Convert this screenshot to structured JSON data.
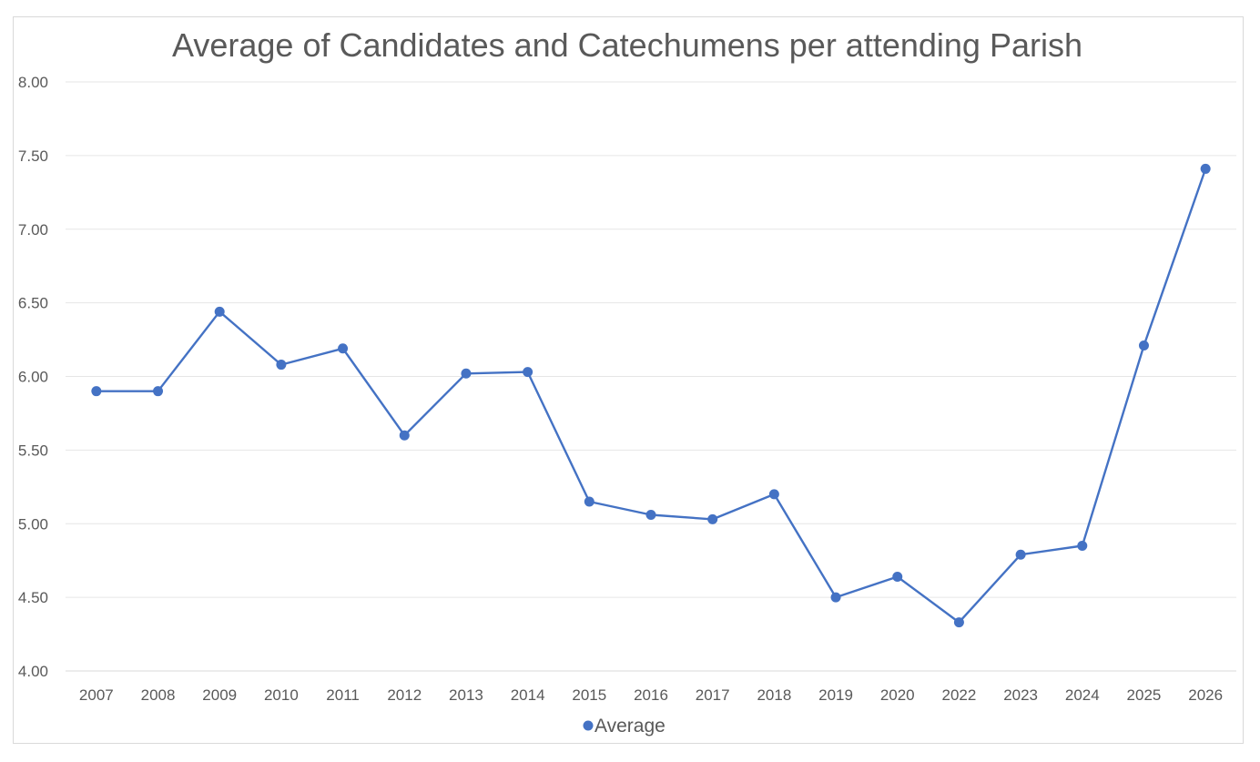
{
  "chart_data": {
    "type": "line",
    "title": "Average of Candidates and Catechumens per attending Parish",
    "xlabel": "",
    "ylabel": "",
    "categories": [
      "2007",
      "2008",
      "2009",
      "2010",
      "2011",
      "2012",
      "2013",
      "2014",
      "2015",
      "2016",
      "2017",
      "2018",
      "2019",
      "2020",
      "2022",
      "2023",
      "2024",
      "2025",
      "2026"
    ],
    "series": [
      {
        "name": "Average",
        "values": [
          5.9,
          5.9,
          6.44,
          6.08,
          6.19,
          5.6,
          6.02,
          6.03,
          5.15,
          5.06,
          5.03,
          5.2,
          4.5,
          4.64,
          4.33,
          4.79,
          4.85,
          6.21,
          7.41
        ]
      }
    ],
    "ylim": [
      4.0,
      8.0
    ],
    "yticks": [
      "4.00",
      "4.50",
      "5.00",
      "5.50",
      "6.00",
      "6.50",
      "7.00",
      "7.50",
      "8.00"
    ],
    "grid": true,
    "legend": "bottom",
    "colors": {
      "line": "#4472c4",
      "grid": "#e6e6e6",
      "text": "#595959"
    }
  }
}
